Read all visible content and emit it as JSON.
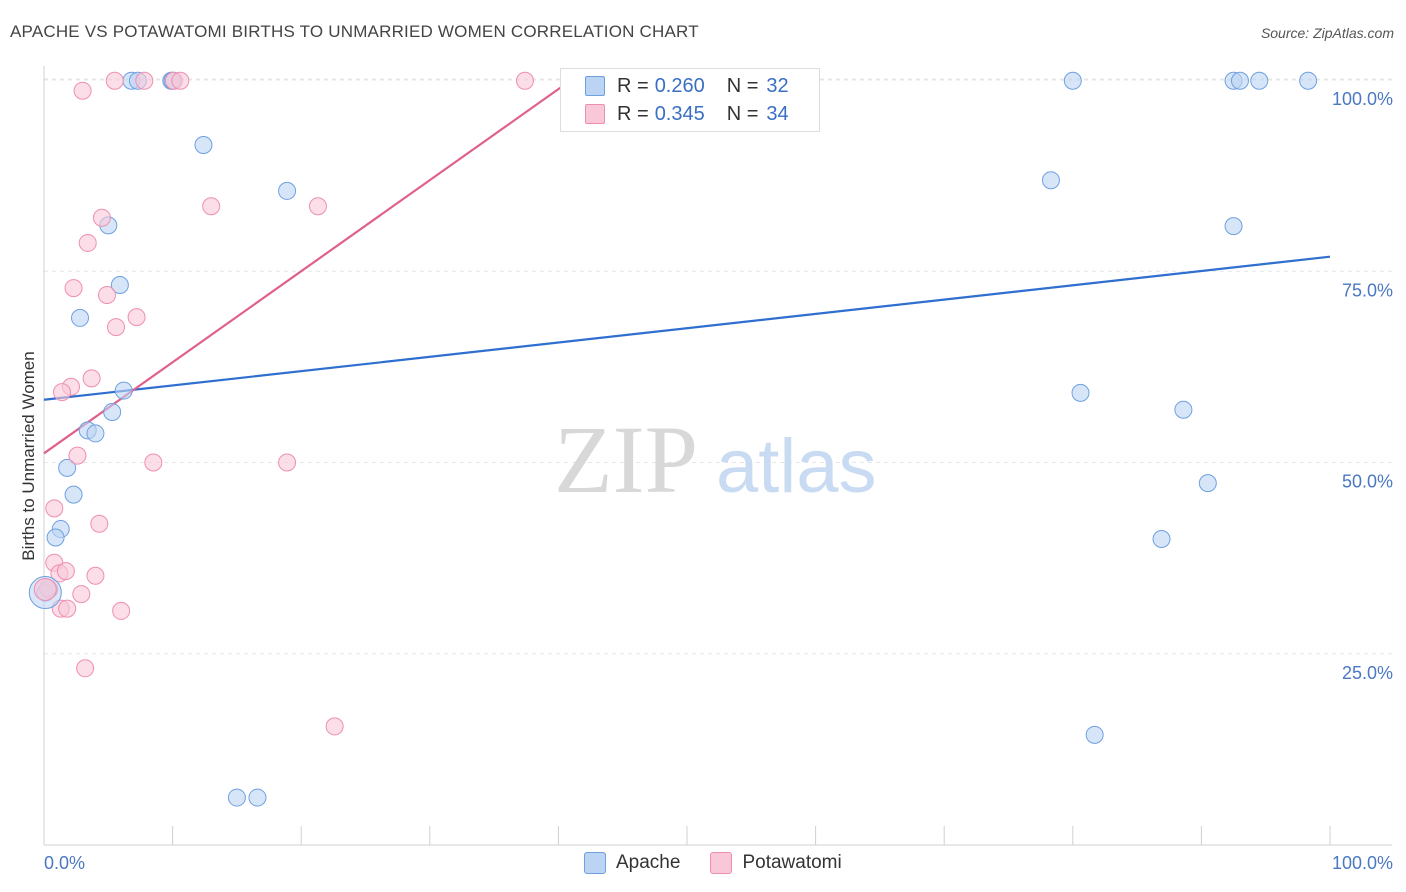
{
  "title": "APACHE VS POTAWATOMI BIRTHS TO UNMARRIED WOMEN CORRELATION CHART",
  "source": "Source: ZipAtlas.com",
  "watermark": {
    "zip": "ZIP",
    "atlas": "atlas"
  },
  "legend": {
    "r_label": "R =",
    "n_label": "N =",
    "rows": [
      {
        "r": "0.260",
        "n": "32"
      },
      {
        "r": "0.345",
        "n": "34"
      }
    ]
  },
  "chart_data": {
    "type": "scatter",
    "title": "APACHE VS POTAWATOMI BIRTHS TO UNMARRIED WOMEN CORRELATION CHART",
    "xlabel": "",
    "ylabel": "Births to Unmarried Women",
    "xlim": [
      0,
      100
    ],
    "ylim": [
      0,
      102
    ],
    "x_tick_labels": [
      "0.0%",
      "100.0%"
    ],
    "y_ticks": [
      25,
      50,
      75,
      100
    ],
    "y_tick_labels": [
      "25.0%",
      "50.0%",
      "75.0%",
      "100.0%"
    ],
    "grid": true,
    "series": [
      {
        "name": "Apache",
        "color": "#6fa0e0",
        "fill": "#bcd4f4",
        "trend": {
          "x": [
            0,
            100
          ],
          "y": [
            58.2,
            76.9
          ],
          "color": "#2f6fd0"
        },
        "points": [
          [
            6.8,
            99.9
          ],
          [
            7.3,
            99.9
          ],
          [
            9.9,
            99.9
          ],
          [
            10.0,
            99.9
          ],
          [
            12.4,
            91.5
          ],
          [
            18.9,
            85.5
          ],
          [
            5.0,
            81.0
          ],
          [
            5.9,
            73.2
          ],
          [
            2.8,
            68.9
          ],
          [
            6.2,
            59.4
          ],
          [
            5.3,
            56.6
          ],
          [
            3.4,
            54.2
          ],
          [
            4.0,
            53.8
          ],
          [
            1.8,
            49.3
          ],
          [
            2.3,
            45.8
          ],
          [
            1.3,
            41.3
          ],
          [
            0.9,
            40.2
          ],
          [
            0.1,
            33.0
          ],
          [
            15.0,
            6.2
          ],
          [
            16.6,
            6.2
          ],
          [
            80.0,
            99.9
          ],
          [
            92.5,
            99.9
          ],
          [
            93.0,
            99.9
          ],
          [
            94.5,
            99.9
          ],
          [
            98.3,
            99.9
          ],
          [
            78.3,
            86.9
          ],
          [
            92.5,
            80.9
          ],
          [
            80.6,
            59.1
          ],
          [
            88.6,
            56.9
          ],
          [
            90.5,
            47.3
          ],
          [
            86.9,
            40.0
          ],
          [
            81.7,
            14.4
          ]
        ]
      },
      {
        "name": "Potawatomi",
        "color": "#ee8fb0",
        "fill": "#f8c8d8",
        "trend": {
          "x": [
            0,
            41.0
          ],
          "y": [
            51.2,
            100.0
          ],
          "color": "#e0608c"
        },
        "points": [
          [
            3.0,
            98.6
          ],
          [
            5.5,
            99.9
          ],
          [
            7.8,
            99.9
          ],
          [
            10.1,
            99.9
          ],
          [
            10.6,
            99.9
          ],
          [
            37.4,
            99.9
          ],
          [
            13.0,
            83.5
          ],
          [
            21.3,
            83.5
          ],
          [
            4.5,
            82.0
          ],
          [
            3.4,
            78.7
          ],
          [
            2.3,
            72.8
          ],
          [
            4.9,
            71.9
          ],
          [
            7.2,
            69.0
          ],
          [
            5.6,
            67.7
          ],
          [
            3.7,
            61.0
          ],
          [
            2.1,
            59.9
          ],
          [
            1.4,
            59.2
          ],
          [
            2.6,
            50.9
          ],
          [
            8.5,
            50.0
          ],
          [
            18.9,
            50.0
          ],
          [
            0.8,
            44.0
          ],
          [
            4.3,
            42.0
          ],
          [
            0.8,
            36.9
          ],
          [
            1.2,
            35.5
          ],
          [
            1.7,
            35.8
          ],
          [
            4.0,
            35.2
          ],
          [
            0.4,
            33.4
          ],
          [
            2.9,
            32.8
          ],
          [
            1.3,
            30.9
          ],
          [
            1.8,
            30.9
          ],
          [
            6.0,
            30.6
          ],
          [
            0.3,
            33.6
          ],
          [
            3.2,
            23.1
          ],
          [
            22.6,
            15.5
          ]
        ]
      }
    ]
  }
}
